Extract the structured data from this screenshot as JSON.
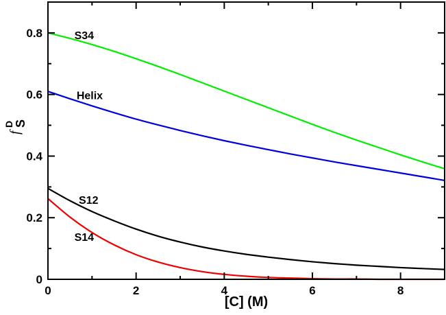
{
  "chart_data": {
    "type": "line",
    "xlabel": "[C] (M)",
    "ylabel": {
      "base": "f",
      "sup": "D",
      "sub": "S"
    },
    "xlim": [
      0,
      9
    ],
    "ylim": [
      0,
      0.9
    ],
    "xticks": [
      0,
      2,
      4,
      6,
      8
    ],
    "yticks": [
      0,
      0.2,
      0.4,
      0.6,
      0.8
    ],
    "xtick_labels": [
      "0",
      "2",
      "4",
      "6",
      "8"
    ],
    "ytick_labels": [
      "0",
      "0.2",
      "0.4",
      "0.6",
      "0.8"
    ],
    "grid": false,
    "legend": "none",
    "series": [
      {
        "name": "S34",
        "color": "#00ee00",
        "label_at": [
          0.6,
          0.78
        ],
        "x": [
          0,
          0.5,
          1,
          1.5,
          2,
          2.5,
          3,
          3.5,
          4,
          4.5,
          5,
          5.5,
          6,
          6.5,
          7,
          7.5,
          8,
          8.5,
          9
        ],
        "values": [
          0.8,
          0.782,
          0.762,
          0.74,
          0.716,
          0.691,
          0.665,
          0.638,
          0.611,
          0.584,
          0.557,
          0.53,
          0.503,
          0.477,
          0.452,
          0.428,
          0.404,
          0.381,
          0.359
        ]
      },
      {
        "name": "Helix",
        "color": "#0000dd",
        "label_at": [
          0.65,
          0.585
        ],
        "x": [
          0,
          0.5,
          1,
          1.5,
          2,
          2.5,
          3,
          3.5,
          4,
          4.5,
          5,
          5.5,
          6,
          6.5,
          7,
          7.5,
          8,
          8.5,
          9
        ],
        "values": [
          0.61,
          0.586,
          0.563,
          0.541,
          0.52,
          0.501,
          0.483,
          0.466,
          0.45,
          0.435,
          0.421,
          0.407,
          0.394,
          0.381,
          0.369,
          0.357,
          0.345,
          0.333,
          0.321
        ]
      },
      {
        "name": "S12",
        "color": "#000000",
        "label_at": [
          0.7,
          0.245
        ],
        "x": [
          0,
          0.5,
          1,
          1.5,
          2,
          2.5,
          3,
          3.5,
          4,
          4.5,
          5,
          5.5,
          6,
          6.5,
          7,
          7.5,
          8,
          8.5,
          9
        ],
        "values": [
          0.295,
          0.255,
          0.22,
          0.19,
          0.163,
          0.14,
          0.121,
          0.105,
          0.092,
          0.081,
          0.072,
          0.064,
          0.057,
          0.051,
          0.046,
          0.042,
          0.038,
          0.035,
          0.032
        ]
      },
      {
        "name": "S14",
        "color": "#ee0000",
        "label_at": [
          0.6,
          0.125
        ],
        "x": [
          0,
          0.5,
          1,
          1.5,
          2,
          2.5,
          3,
          3.5,
          4,
          4.5,
          5,
          5.5,
          6,
          6.5,
          7,
          7.5,
          8,
          8.5,
          9
        ],
        "values": [
          0.262,
          0.202,
          0.152,
          0.112,
          0.08,
          0.056,
          0.038,
          0.025,
          0.016,
          0.01,
          0.006,
          0.004,
          0.002,
          0.001,
          0.001,
          0,
          0,
          0,
          0
        ]
      }
    ]
  }
}
